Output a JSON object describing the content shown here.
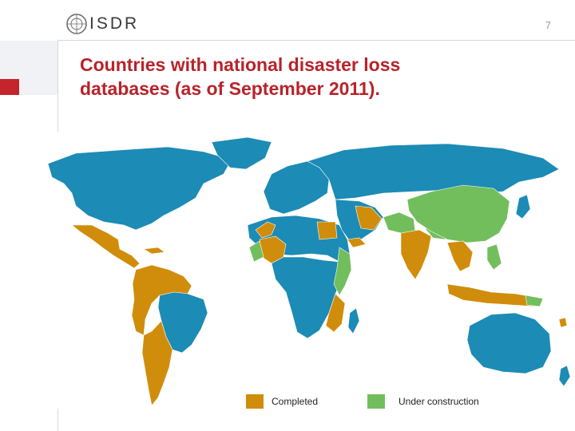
{
  "header": {
    "logo_text": "ISDR",
    "page_number": "7"
  },
  "slide": {
    "title_line1": "Countries with national disaster loss",
    "title_line2": "databases (as of September 2011)."
  },
  "map": {
    "colors": {
      "ocean": "#ffffff",
      "no_database": "#1c8bb5",
      "completed": "#d08d0b",
      "under_construction": "#72be5d",
      "accent_red": "#c4242b"
    }
  },
  "legend": {
    "items": [
      {
        "label": "Completed",
        "color": "#d08d0b"
      },
      {
        "label": "Under construction",
        "color": "#72be5d"
      }
    ]
  }
}
